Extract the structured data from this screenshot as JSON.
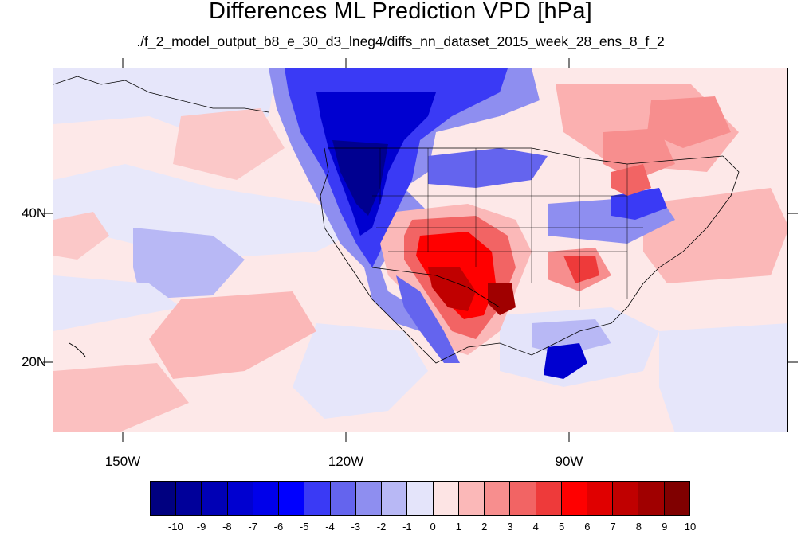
{
  "title": "Differences ML Prediction VPD [hPa]",
  "subtitle": "./f_2_model_output_b8_e_30_d3_lneg4/diffs_nn_dataset_2015_week_28_ens_8_f_2",
  "lon_labels": [
    "150W",
    "120W",
    "90W"
  ],
  "lat_labels": [
    "40N",
    "20N"
  ],
  "colorbar": {
    "labels": [
      "-10",
      "-9",
      "-8",
      "-7",
      "-6",
      "-5",
      "-4",
      "-3",
      "-2",
      "-1",
      "0",
      "1",
      "2",
      "3",
      "4",
      "5",
      "6",
      "7",
      "8",
      "9",
      "10"
    ],
    "colors": [
      "#000080",
      "#00009a",
      "#0000b5",
      "#0000d0",
      "#0000ea",
      "#0000ff",
      "#3a3af5",
      "#6464ee",
      "#8e8ef0",
      "#b8b8f5",
      "#e4e4fa",
      "#fde4e4",
      "#fbb8b8",
      "#f78e8e",
      "#f26464",
      "#ee3a3a",
      "#ff0000",
      "#e00000",
      "#c00000",
      "#a00000",
      "#800000"
    ]
  }
}
